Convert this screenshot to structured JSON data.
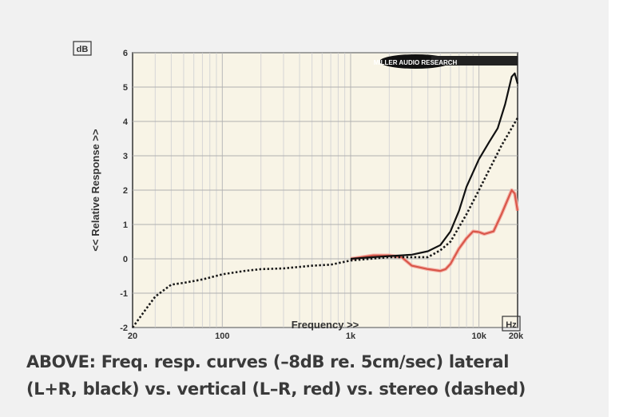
{
  "chart_data": {
    "type": "line",
    "title": "",
    "xlabel": "Frequency >>",
    "ylabel": "<< Relative Response >>",
    "x_unit_label": "Hz",
    "y_unit_label": "dB",
    "xscale": "log",
    "xlim": [
      20,
      20000
    ],
    "ylim": [
      -2,
      6
    ],
    "x_ticks": [
      {
        "v": 20,
        "label": "20"
      },
      {
        "v": 100,
        "label": "100"
      },
      {
        "v": 1000,
        "label": "1k"
      },
      {
        "v": 10000,
        "label": "10k"
      },
      {
        "v": 20000,
        "label": "20k"
      }
    ],
    "y_ticks": [
      {
        "v": -2,
        "label": "-2"
      },
      {
        "v": -1,
        "label": "-1"
      },
      {
        "v": 0,
        "label": "0"
      },
      {
        "v": 1,
        "label": "1"
      },
      {
        "v": 2,
        "label": "2"
      },
      {
        "v": 3,
        "label": "3"
      },
      {
        "v": 4,
        "label": "4"
      },
      {
        "v": 5,
        "label": "5"
      },
      {
        "v": 6,
        "label": "6"
      }
    ],
    "grid": true,
    "watermark": "MILLER AUDIO RESEARCH",
    "series": [
      {
        "name": "stereo",
        "color": "#1a1a1a",
        "style": "dashed",
        "x": [
          20,
          25,
          30,
          40,
          50,
          70,
          100,
          150,
          200,
          300,
          500,
          700,
          1000,
          2000,
          3000,
          4000,
          5000,
          6000,
          8000,
          10000,
          15000,
          20000
        ],
        "y": [
          -2,
          -1.5,
          -1.1,
          -0.75,
          -0.7,
          -0.6,
          -0.45,
          -0.35,
          -0.3,
          -0.28,
          -0.2,
          -0.17,
          -0.05,
          0.05,
          0.05,
          0.05,
          0.25,
          0.5,
          1.3,
          2.0,
          3.3,
          4.1
        ]
      },
      {
        "name": "lateral (L+R)",
        "color": "#111111",
        "style": "solid",
        "x": [
          1000,
          1500,
          2000,
          3000,
          4000,
          5000,
          6000,
          7000,
          8000,
          10000,
          12000,
          14000,
          16000,
          18000,
          19000,
          20000
        ],
        "y": [
          0,
          0.05,
          0.08,
          0.12,
          0.22,
          0.4,
          0.8,
          1.4,
          2.1,
          2.9,
          3.4,
          3.8,
          4.5,
          5.3,
          5.4,
          5.1
        ]
      },
      {
        "name": "vertical (L-R)",
        "color": "#d9574a",
        "style": "solid",
        "x": [
          1000,
          1500,
          2000,
          2500,
          3000,
          4000,
          5000,
          5500,
          6000,
          7000,
          8000,
          9000,
          10000,
          11000,
          13000,
          15000,
          18000,
          19000,
          20000
        ],
        "y": [
          0,
          0.1,
          0.1,
          0.05,
          -0.2,
          -0.3,
          -0.35,
          -0.3,
          -0.15,
          0.3,
          0.6,
          0.8,
          0.78,
          0.72,
          0.8,
          1.3,
          2.0,
          1.9,
          1.4
        ]
      }
    ]
  },
  "caption": {
    "line1": "ABOVE: Freq. resp. curves (–8dB re. 5cm/sec) lateral",
    "line2": "(L+R, black) vs. vertical (L–R, red) vs. stereo (dashed)"
  }
}
